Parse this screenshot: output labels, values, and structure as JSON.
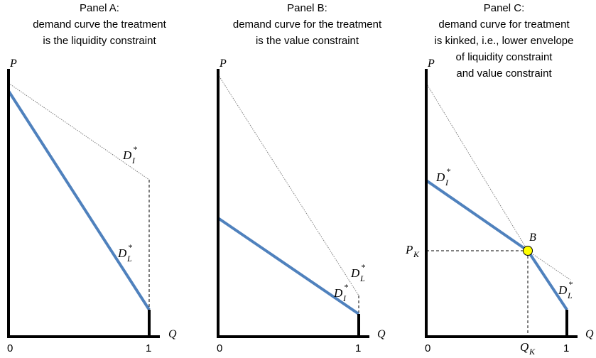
{
  "panels": [
    {
      "title_lines": [
        "Panel A:",
        "demand curve the treatment",
        "is the liquidity constraint"
      ],
      "y_axis_label": "P",
      "x_axis_label": "Q",
      "tick_zero": "0",
      "tick_one": "1",
      "curve_labels": [
        {
          "main": "D",
          "sub": "I",
          "sup": "*"
        },
        {
          "main": "D",
          "sub": "L",
          "sup": "*"
        }
      ]
    },
    {
      "title_lines": [
        "Panel B:",
        "demand curve for the treatment",
        "is the value constraint"
      ],
      "y_axis_label": "P",
      "x_axis_label": "Q",
      "tick_zero": "0",
      "tick_one": "1",
      "curve_labels": [
        {
          "main": "D",
          "sub": "L",
          "sup": "*"
        },
        {
          "main": "D",
          "sub": "I",
          "sup": "*"
        }
      ]
    },
    {
      "title_lines": [
        "Panel C:",
        "demand curve for treatment",
        "is kinked, i.e., lower envelope",
        "of liquidity constraint",
        "and value constraint"
      ],
      "y_axis_label": "P",
      "x_axis_label": "Q",
      "tick_zero": "0",
      "tick_one": "1",
      "curve_labels": [
        {
          "main": "D",
          "sub": "I",
          "sup": "*"
        },
        {
          "main": "D",
          "sub": "L",
          "sup": "*"
        }
      ],
      "kink_label": "B",
      "price_label": {
        "main": "P",
        "sub": "K"
      },
      "quantity_label": {
        "main": "Q",
        "sub": "K"
      }
    }
  ],
  "colors": {
    "bold_line": "#4f81bd",
    "thin_line": "#7f7f7f",
    "axis": "#000000",
    "kink_point": "#ffff00"
  }
}
